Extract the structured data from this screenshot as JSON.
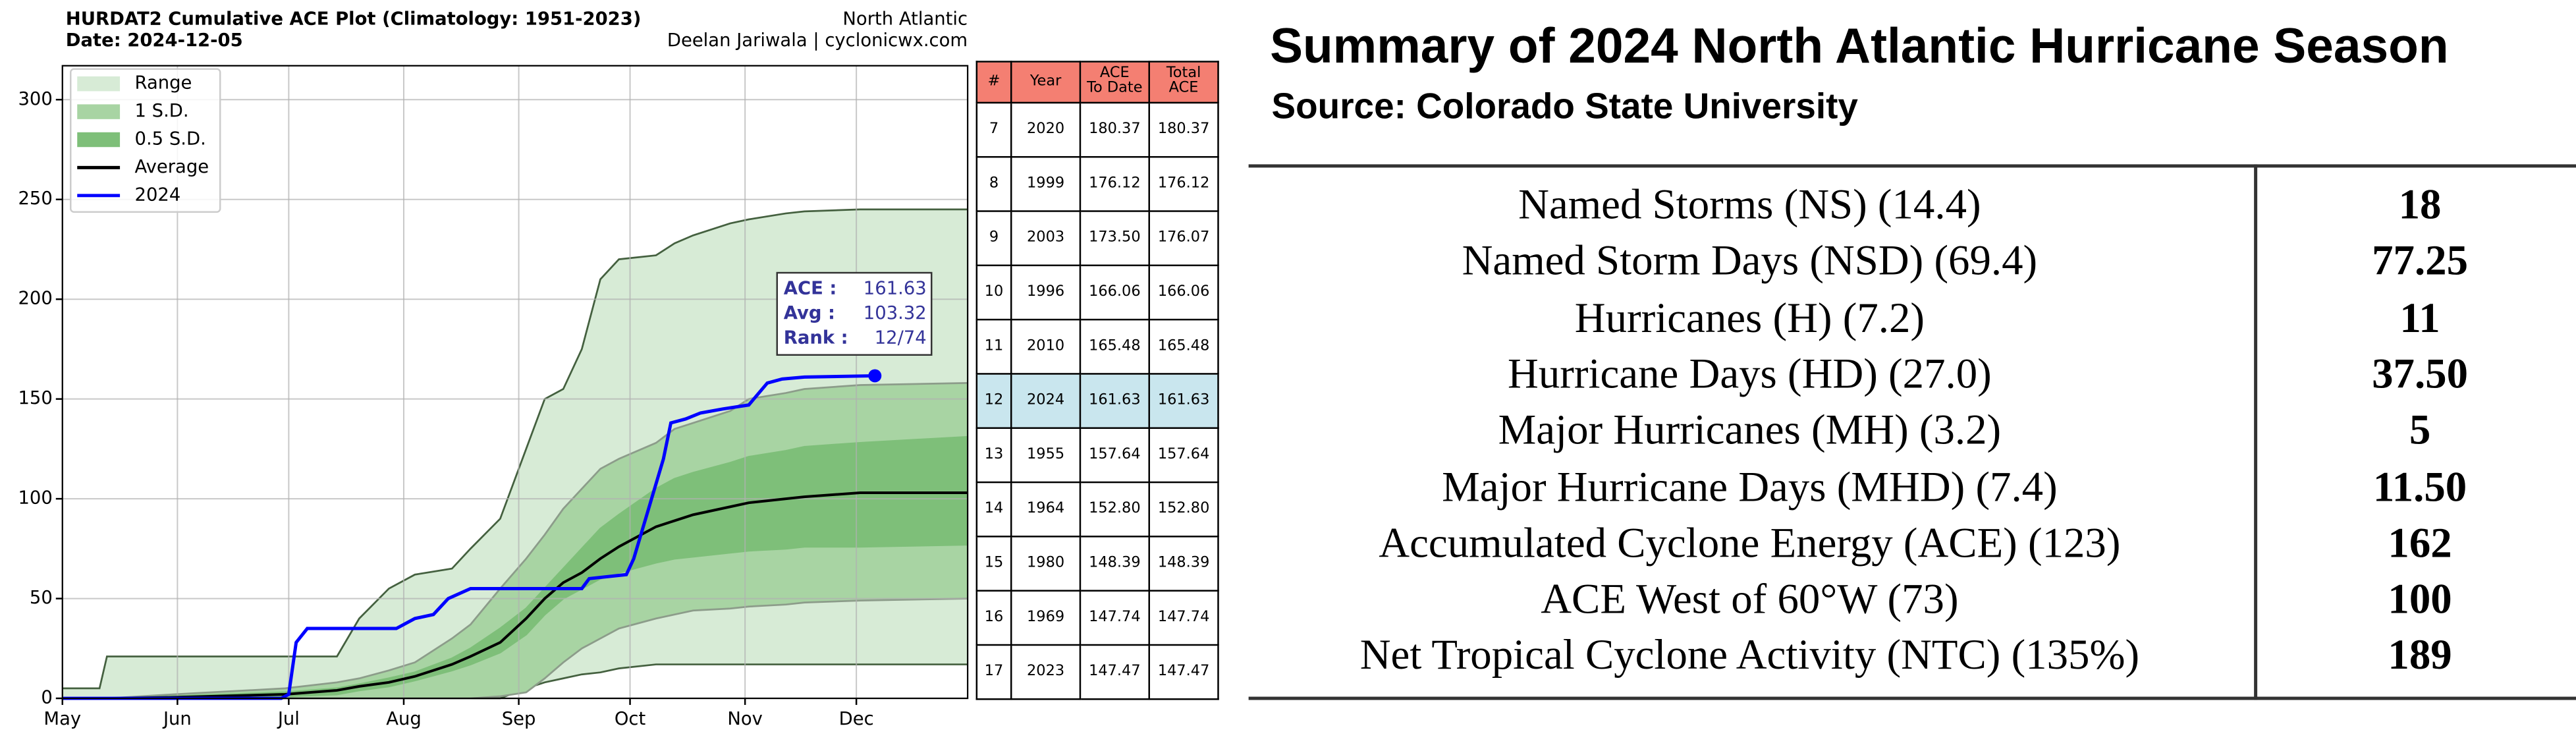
{
  "chart_data": {
    "type": "line",
    "title": "HURDAT2 Cumulative ACE Plot (Climatology: 1951-2023)",
    "subtitle": "Date: 2024-12-05",
    "region": "North Atlantic",
    "credit": "Deelan Jariwala | cyclonicwx.com",
    "x": [
      0,
      10,
      12,
      30,
      60,
      74,
      80,
      88,
      95,
      105,
      110,
      118,
      125,
      130,
      135,
      140,
      145,
      150,
      160,
      165,
      170,
      180,
      185,
      195,
      200,
      215,
      244
    ],
    "xlim": [
      0,
      244
    ],
    "xticks": [
      {
        "value": 0,
        "label": "May"
      },
      {
        "value": 31,
        "label": "Jun"
      },
      {
        "value": 61,
        "label": "Jul"
      },
      {
        "value": 92,
        "label": "Aug"
      },
      {
        "value": 123,
        "label": "Sep"
      },
      {
        "value": 153,
        "label": "Oct"
      },
      {
        "value": 184,
        "label": "Nov"
      },
      {
        "value": 214,
        "label": "Dec"
      }
    ],
    "ylim": [
      0,
      317
    ],
    "yticks": [
      0,
      50,
      100,
      150,
      200,
      250,
      300
    ],
    "grid": true,
    "legend": "upper left",
    "series": [
      {
        "name": "Range",
        "kind": "band",
        "color": "#d7ebd6",
        "edge_color": "#44603f",
        "upper": [
          5,
          5,
          21,
          21,
          21,
          21,
          40,
          55,
          62,
          65,
          75,
          90,
          125,
          150,
          155,
          175,
          210,
          220,
          222,
          228,
          232,
          238,
          240,
          243,
          244,
          245,
          245
        ],
        "lower": [
          0,
          0,
          0,
          0,
          0,
          0,
          0,
          0,
          0,
          0,
          0,
          0,
          5,
          8,
          10,
          12,
          13,
          15,
          17,
          17,
          17,
          17,
          17,
          17,
          17,
          17,
          17
        ]
      },
      {
        "name": "1 S.D.",
        "kind": "band",
        "color": "#a8d4a3",
        "edge_color": "#8c9c8a",
        "upper": [
          0,
          0,
          0,
          2,
          5,
          8,
          10,
          14,
          18,
          30,
          37,
          55,
          70,
          82,
          95,
          105,
          115,
          120,
          128,
          135,
          138,
          144,
          150,
          153,
          155,
          157,
          158
        ],
        "lower": [
          0,
          0,
          0,
          0,
          0,
          0,
          0,
          0,
          0,
          0,
          0,
          1,
          3,
          10,
          18,
          25,
          30,
          35,
          40,
          42,
          44,
          45,
          46,
          47,
          48,
          49,
          50
        ]
      },
      {
        "name": "0.5 S.D.",
        "kind": "band",
        "color": "#7ebf79",
        "edge_color": "#7ebf79",
        "upper": [
          0,
          0,
          0,
          1,
          3,
          5,
          7,
          10,
          13,
          20,
          25,
          35,
          45,
          55,
          65,
          75,
          85,
          92,
          105,
          110,
          113,
          118,
          121,
          124,
          126,
          128,
          131
        ],
        "lower": [
          0,
          0,
          0,
          0,
          1,
          2,
          4,
          6,
          9,
          14,
          17,
          23,
          32,
          42,
          50,
          55,
          60,
          63,
          68,
          70,
          71,
          73,
          74,
          75,
          76,
          76,
          77
        ]
      },
      {
        "name": "Average",
        "kind": "line",
        "color": "#000000",
        "values": [
          0,
          0,
          0,
          0.5,
          2,
          4,
          6,
          8,
          11,
          17,
          21,
          28,
          40,
          50,
          58,
          63,
          70,
          76,
          86,
          89,
          92,
          96,
          98,
          100,
          101,
          103,
          103
        ]
      },
      {
        "name": "2024",
        "kind": "line",
        "color": "#0000ff",
        "end_marker": true,
        "x": [
          0,
          59,
          61,
          63,
          66,
          90,
          95,
          100,
          104,
          110,
          140,
          142,
          152,
          154,
          158,
          162,
          164,
          168,
          172,
          178,
          185,
          190,
          194,
          200,
          219
        ],
        "values": [
          0,
          0,
          2,
          28,
          35,
          35,
          40,
          42,
          50,
          55,
          55,
          60,
          62,
          70,
          95,
          120,
          138,
          140,
          143,
          145,
          147,
          158,
          160,
          161,
          161.63
        ]
      }
    ],
    "annotation": [
      {
        "label": "ACE :",
        "value": 161.63
      },
      {
        "label": "Avg :",
        "value": 103.32
      },
      {
        "label": "Rank :",
        "value": "12/74"
      }
    ]
  },
  "rank_table": {
    "headers": [
      "#",
      "Year",
      "ACE\nTo Date",
      "Total\nACE"
    ],
    "highlight_row": 5,
    "rows": [
      [
        "7",
        "2020",
        "180.37",
        "180.37"
      ],
      [
        "8",
        "1999",
        "176.12",
        "176.12"
      ],
      [
        "9",
        "2003",
        "173.50",
        "176.07"
      ],
      [
        "10",
        "1996",
        "166.06",
        "166.06"
      ],
      [
        "11",
        "2010",
        "165.48",
        "165.48"
      ],
      [
        "12",
        "2024",
        "161.63",
        "161.63"
      ],
      [
        "13",
        "1955",
        "157.64",
        "157.64"
      ],
      [
        "14",
        "1964",
        "152.80",
        "152.80"
      ],
      [
        "15",
        "1980",
        "148.39",
        "148.39"
      ],
      [
        "16",
        "1969",
        "147.74",
        "147.74"
      ],
      [
        "17",
        "2023",
        "147.47",
        "147.47"
      ]
    ]
  },
  "summary": {
    "title": "Summary of 2024 North Atlantic Hurricane Season",
    "source": "Source: Colorado State University",
    "rows": [
      {
        "label": "Named Storms (NS) (14.4)",
        "value": "18"
      },
      {
        "label": "Named Storm Days (NSD) (69.4)",
        "value": "77.25"
      },
      {
        "label": "Hurricanes (H) (7.2)",
        "value": "11"
      },
      {
        "label": "Hurricane Days (HD) (27.0)",
        "value": "37.50"
      },
      {
        "label": "Major Hurricanes (MH) (3.2)",
        "value": "5"
      },
      {
        "label": "Major Hurricane Days (MHD) (7.4)",
        "value": "11.50"
      },
      {
        "label": "Accumulated Cyclone Energy (ACE) (123)",
        "value": "162"
      },
      {
        "label": "ACE West of 60°W (73)",
        "value": "100"
      },
      {
        "label": "Net Tropical Cyclone Activity (NTC) (135%)",
        "value": "189"
      }
    ]
  }
}
